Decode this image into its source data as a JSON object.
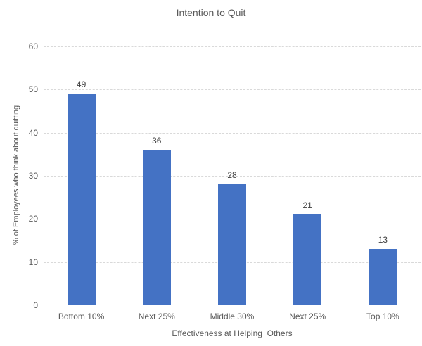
{
  "chart_data": {
    "type": "bar",
    "title": "Intention to Quit",
    "categories": [
      "Bottom 10%",
      "Next 25%",
      "Middle 30%",
      "Next 25%",
      "Top 10%"
    ],
    "values": [
      49,
      36,
      28,
      21,
      13
    ],
    "data_labels": [
      "49",
      "36",
      "28",
      "21",
      "13"
    ],
    "xlabel": "Effectiveness at Helping  Others",
    "ylabel": "% of Employees who think about quitting",
    "ylim": [
      0,
      60
    ],
    "yticks": [
      0,
      10,
      20,
      30,
      40,
      50,
      60
    ],
    "grid": "horizontal-dashed",
    "legend": "none",
    "colors": {
      "bar_fill": "#4472C4",
      "title_text": "#595959",
      "axis_text": "#595959",
      "data_label_text": "#404040",
      "gridline": "#D9D9D9",
      "axis_line": "#D2D2D2"
    }
  }
}
